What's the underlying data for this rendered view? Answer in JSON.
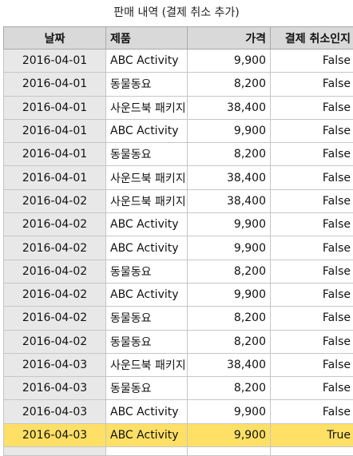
{
  "caption": "판매 내역 (결제 취소 추가)",
  "table": {
    "headers": [
      "날짜",
      "제품",
      "가격",
      "결제 취소인지"
    ],
    "rows": [
      [
        "2016-04-01",
        "ABC Activity",
        "9,900",
        "False"
      ],
      [
        "2016-04-01",
        "동물동요",
        "8,200",
        "False"
      ],
      [
        "2016-04-01",
        "사운드북 패키지",
        "38,400",
        "False"
      ],
      [
        "2016-04-01",
        "ABC Activity",
        "9,900",
        "False"
      ],
      [
        "2016-04-01",
        "동물동요",
        "8,200",
        "False"
      ],
      [
        "2016-04-01",
        "사운드북 패키지",
        "38,400",
        "False"
      ],
      [
        "2016-04-02",
        "사운드북 패키지",
        "38,400",
        "False"
      ],
      [
        "2016-04-02",
        "ABC Activity",
        "9,900",
        "False"
      ],
      [
        "2016-04-02",
        "ABC Activity",
        "9,900",
        "False"
      ],
      [
        "2016-04-02",
        "동물동요",
        "8,200",
        "False"
      ],
      [
        "2016-04-02",
        "ABC Activity",
        "9,900",
        "False"
      ],
      [
        "2016-04-02",
        "동물동요",
        "8,200",
        "False"
      ],
      [
        "2016-04-02",
        "동물동요",
        "8,200",
        "False"
      ],
      [
        "2016-04-03",
        "사운드북 패키지",
        "38,400",
        "False"
      ],
      [
        "2016-04-03",
        "동물동요",
        "8,200",
        "False"
      ],
      [
        "2016-04-03",
        "ABC Activity",
        "9,900",
        "False"
      ],
      [
        "2016-04-03",
        "ABC Activity",
        "9,900",
        "True"
      ]
    ],
    "highlighted_row": 16,
    "highlight_color": "#ffe066",
    "header_color": "#d9d9d9"
  }
}
